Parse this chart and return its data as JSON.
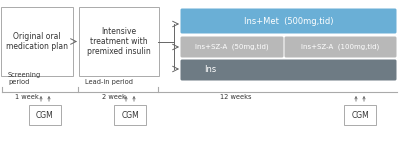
{
  "bg_color": "#ffffff",
  "box1_text": "Original oral\nmedication plan",
  "box2_text": "Intensive\ntreatment with\npremixed insulin",
  "bar1_text": "Ins+Met  (500mg,tid)",
  "bar2a_text": "Ins+SZ-A  (50mg,tid)",
  "bar2b_text": "Ins+SZ-A  (100mg,tid)",
  "bar3_text": "Ins",
  "bar1_color": "#6aafd6",
  "bar2_color": "#b8b8b8",
  "bar3_color": "#6e7b84",
  "screening_text": "Screening\nperiod",
  "leadin_text": "Lead-in period",
  "week1_text": "1 week",
  "week2_text": "2 week",
  "week12_text": "12 weeks",
  "cgm_text": "CGM",
  "arrow_color": "#666666",
  "box_edge_color": "#aaaaaa",
  "line_color": "#aaaaaa",
  "text_color": "#333333"
}
